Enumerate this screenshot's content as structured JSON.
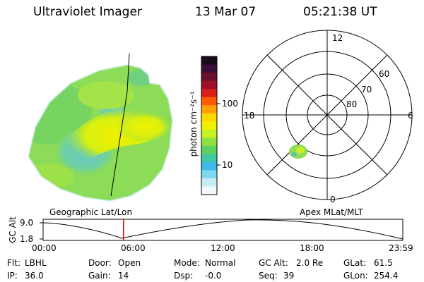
{
  "header": {
    "instrument": "Ultraviolet Imager",
    "date": "13 Mar 07",
    "time": "05:21:38 UT"
  },
  "colorbar": {
    "unit_label": "photon cm⁻²s⁻¹",
    "ticks": [
      "100",
      "10"
    ],
    "colors": [
      "#1a0a1e",
      "#3b0f3c",
      "#6a1030",
      "#a0102a",
      "#d8201a",
      "#ff5a00",
      "#ffa000",
      "#ffd700",
      "#f0f000",
      "#c8f020",
      "#90e040",
      "#5cd060",
      "#40c8a0",
      "#40b8e8",
      "#80d8f0",
      "#c8ecf4",
      "#f0f8fa"
    ]
  },
  "left_panel": {
    "label": "Geographic Lat/Lon"
  },
  "right_panel": {
    "label": "Apex MLat/MLT",
    "mlt_labels": {
      "top": "12",
      "left": "18",
      "right": "6",
      "bottom": "0"
    },
    "lat_labels": [
      "60",
      "70",
      "80"
    ]
  },
  "timeline": {
    "ylabel": "GC Alt",
    "yticks": [
      "9.0",
      "1.8"
    ],
    "xticks": [
      "00:00",
      "06:00",
      "12:00",
      "18:00",
      "23:59"
    ],
    "marker_fraction": 0.2233,
    "marker_color": "#e00000"
  },
  "footer": {
    "rows": [
      [
        {
          "key": "Flt:",
          "val": "LBHL"
        },
        {
          "key": "Door:",
          "val": "Open"
        },
        {
          "key": "Mode:",
          "val": "Normal"
        },
        {
          "key": "GC Alt:",
          "val": "2.0 Re"
        },
        {
          "key": "GLat:",
          "val": "61.5"
        }
      ],
      [
        {
          "key": "IP:",
          "val": "36.0"
        },
        {
          "key": "Gain:",
          "val": "14"
        },
        {
          "key": "Dsp:",
          "val": "-0.0"
        },
        {
          "key": "Seq:",
          "val": "39"
        },
        {
          "key": "GLon:",
          "val": "254.4"
        }
      ]
    ]
  }
}
